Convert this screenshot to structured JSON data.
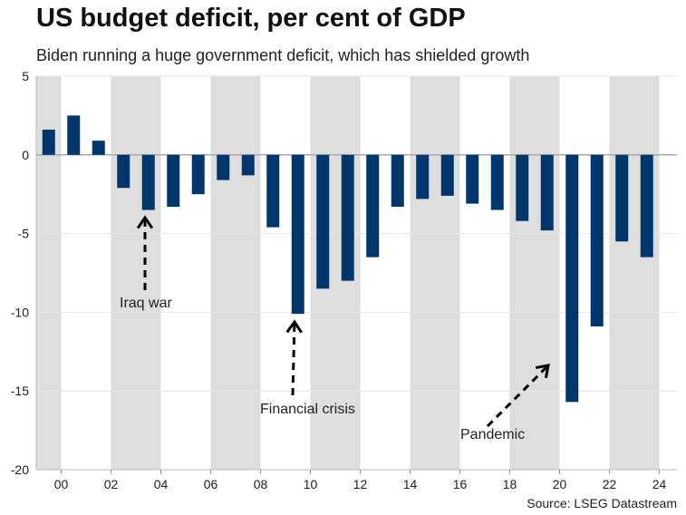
{
  "chart_data": {
    "type": "bar",
    "title": "US budget deficit, per cent of GDP",
    "subtitle": "Biden running a huge government deficit, which has shielded growth",
    "source": "Source: LSEG Datastream",
    "xlabel": "",
    "ylabel": "",
    "ylim": [
      -20,
      5
    ],
    "yticks": [
      5,
      0,
      -5,
      -10,
      -15,
      -20
    ],
    "xtick_labels": [
      "00",
      "02",
      "04",
      "06",
      "08",
      "10",
      "12",
      "14",
      "16",
      "18",
      "20",
      "22",
      "24"
    ],
    "categories": [
      2000,
      2001,
      2002,
      2003,
      2004,
      2005,
      2006,
      2007,
      2008,
      2009,
      2010,
      2011,
      2012,
      2013,
      2014,
      2015,
      2016,
      2017,
      2018,
      2019,
      2020,
      2021,
      2022,
      2023,
      2024
    ],
    "values": [
      1.6,
      2.5,
      0.9,
      -2.1,
      -3.5,
      -3.3,
      -2.5,
      -1.6,
      -1.3,
      -4.6,
      -10.1,
      -8.5,
      -8.0,
      -6.5,
      -3.3,
      -2.8,
      -2.6,
      -3.1,
      -3.5,
      -4.2,
      -4.8,
      -15.7,
      -10.9,
      -5.5,
      -6.5
    ],
    "bar_color": "#00366b",
    "band_color": "#dedede",
    "grid": true,
    "annotations": [
      {
        "text": "Iraq war",
        "year": 2004,
        "value": -3.5
      },
      {
        "text": "Financial crisis",
        "year": 2010,
        "value": -10.1
      },
      {
        "text": "Pandemic",
        "year": 2020,
        "value": -13.2
      }
    ]
  }
}
